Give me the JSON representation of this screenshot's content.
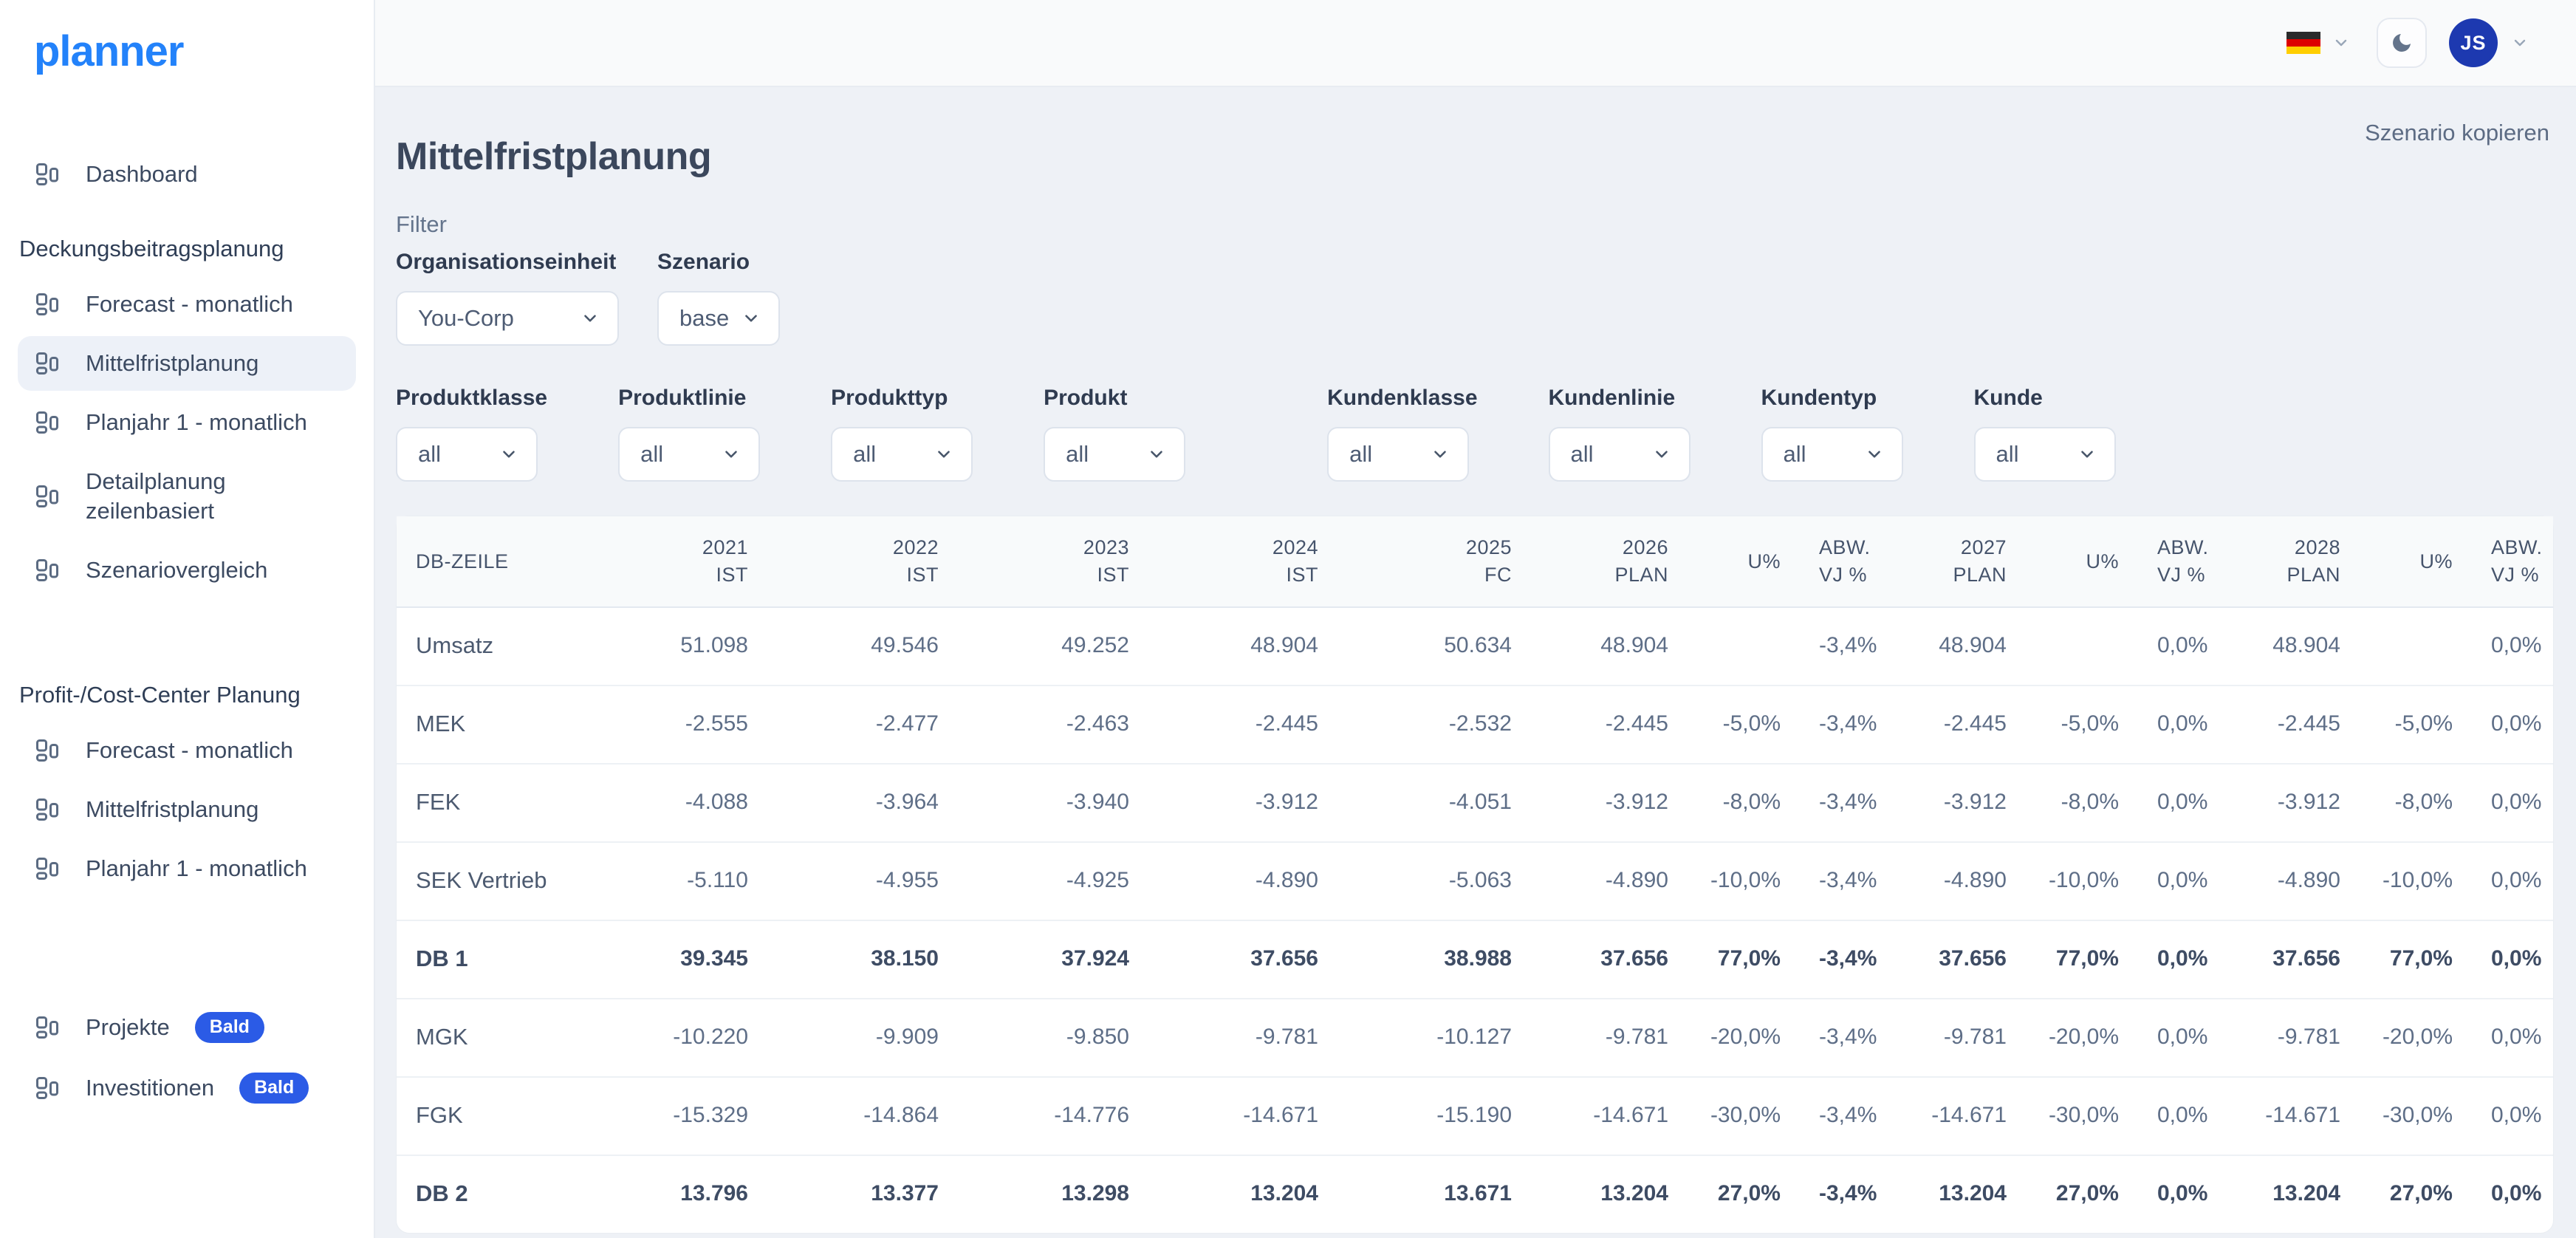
{
  "app": {
    "logo": "planner"
  },
  "topbar": {
    "language_flag": "german",
    "user_initials": "JS"
  },
  "page": {
    "title": "Mittelfristplanung",
    "copy_scenario_label": "Szenario kopieren",
    "filter_heading": "Filter"
  },
  "sidebar": {
    "groups": [
      {
        "header": null,
        "items": [
          {
            "label": "Dashboard"
          }
        ]
      },
      {
        "header": "Deckungsbeitragsplanung",
        "items": [
          {
            "label": "Forecast - monatlich"
          },
          {
            "label": "Mittelfristplanung",
            "active": true
          },
          {
            "label": "Planjahr 1 - monatlich"
          },
          {
            "label": "Detailplanung zeilenbasiert"
          },
          {
            "label": "Szenariovergleich"
          }
        ]
      },
      {
        "header": "Profit-/Cost-Center Planung",
        "items": [
          {
            "label": "Forecast - monatlich"
          },
          {
            "label": "Mittelfristplanung"
          },
          {
            "label": "Planjahr 1 - monatlich"
          }
        ]
      },
      {
        "header": null,
        "items": [
          {
            "label": "Projekte",
            "badge": "Bald"
          },
          {
            "label": "Investitionen",
            "badge": "Bald"
          }
        ]
      }
    ]
  },
  "filters": {
    "primary": [
      {
        "label": "Organisationseinheit",
        "value": "You-Corp"
      },
      {
        "label": "Szenario",
        "value": "base"
      }
    ],
    "secondary": [
      {
        "label": "Produktklasse",
        "value": "all"
      },
      {
        "label": "Produktlinie",
        "value": "all"
      },
      {
        "label": "Produkttyp",
        "value": "all"
      },
      {
        "label": "Produkt",
        "value": "all"
      },
      {
        "label": "Kundenklasse",
        "value": "all",
        "group_start": true
      },
      {
        "label": "Kundenlinie",
        "value": "all"
      },
      {
        "label": "Kundentyp",
        "value": "all"
      },
      {
        "label": "Kunde",
        "value": "all"
      }
    ]
  },
  "table": {
    "columns": [
      {
        "label": "DB-ZEILE"
      },
      {
        "label": "2021",
        "sub": "IST"
      },
      {
        "label": "2022",
        "sub": "IST"
      },
      {
        "label": "2023",
        "sub": "IST"
      },
      {
        "label": "2024",
        "sub": "IST"
      },
      {
        "label": "2025",
        "sub": "FC"
      },
      {
        "label": "2026",
        "sub": "PLAN"
      },
      {
        "label": "U%"
      },
      {
        "label": "ABW.",
        "sub": "VJ %"
      },
      {
        "label": "2027",
        "sub": "PLAN"
      },
      {
        "label": "U%"
      },
      {
        "label": "ABW.",
        "sub": "VJ %"
      },
      {
        "label": "2028",
        "sub": "PLAN"
      },
      {
        "label": "U%"
      },
      {
        "label": "ABW.",
        "sub": "VJ %"
      }
    ],
    "rows": [
      {
        "label": "Umsatz",
        "bold": false,
        "values": [
          "51.098",
          "49.546",
          "49.252",
          "48.904",
          "50.634",
          "48.904",
          "",
          "-3,4%",
          "48.904",
          "",
          "0,0%",
          "48.904",
          "",
          "0,0%"
        ]
      },
      {
        "label": "MEK",
        "bold": false,
        "values": [
          "-2.555",
          "-2.477",
          "-2.463",
          "-2.445",
          "-2.532",
          "-2.445",
          "-5,0%",
          "-3,4%",
          "-2.445",
          "-5,0%",
          "0,0%",
          "-2.445",
          "-5,0%",
          "0,0%"
        ]
      },
      {
        "label": "FEK",
        "bold": false,
        "values": [
          "-4.088",
          "-3.964",
          "-3.940",
          "-3.912",
          "-4.051",
          "-3.912",
          "-8,0%",
          "-3,4%",
          "-3.912",
          "-8,0%",
          "0,0%",
          "-3.912",
          "-8,0%",
          "0,0%"
        ]
      },
      {
        "label": "SEK Vertrieb",
        "bold": false,
        "values": [
          "-5.110",
          "-4.955",
          "-4.925",
          "-4.890",
          "-5.063",
          "-4.890",
          "-10,0%",
          "-3,4%",
          "-4.890",
          "-10,0%",
          "0,0%",
          "-4.890",
          "-10,0%",
          "0,0%"
        ]
      },
      {
        "label": "DB 1",
        "bold": true,
        "values": [
          "39.345",
          "38.150",
          "37.924",
          "37.656",
          "38.988",
          "37.656",
          "77,0%",
          "-3,4%",
          "37.656",
          "77,0%",
          "0,0%",
          "37.656",
          "77,0%",
          "0,0%"
        ]
      },
      {
        "label": "MGK",
        "bold": false,
        "values": [
          "-10.220",
          "-9.909",
          "-9.850",
          "-9.781",
          "-10.127",
          "-9.781",
          "-20,0%",
          "-3,4%",
          "-9.781",
          "-20,0%",
          "0,0%",
          "-9.781",
          "-20,0%",
          "0,0%"
        ]
      },
      {
        "label": "FGK",
        "bold": false,
        "values": [
          "-15.329",
          "-14.864",
          "-14.776",
          "-14.671",
          "-15.190",
          "-14.671",
          "-30,0%",
          "-3,4%",
          "-14.671",
          "-30,0%",
          "0,0%",
          "-14.671",
          "-30,0%",
          "0,0%"
        ]
      },
      {
        "label": "DB 2",
        "bold": true,
        "values": [
          "13.796",
          "13.377",
          "13.298",
          "13.204",
          "13.671",
          "13.204",
          "27,0%",
          "-3,4%",
          "13.204",
          "27,0%",
          "0,0%",
          "13.204",
          "27,0%",
          "0,0%"
        ]
      }
    ]
  },
  "colors": {
    "accent_blue": "#2382fa",
    "badge_blue": "#2b5be6",
    "avatar_blue": "#1d39b0",
    "page_bg": "#eef1f6"
  }
}
